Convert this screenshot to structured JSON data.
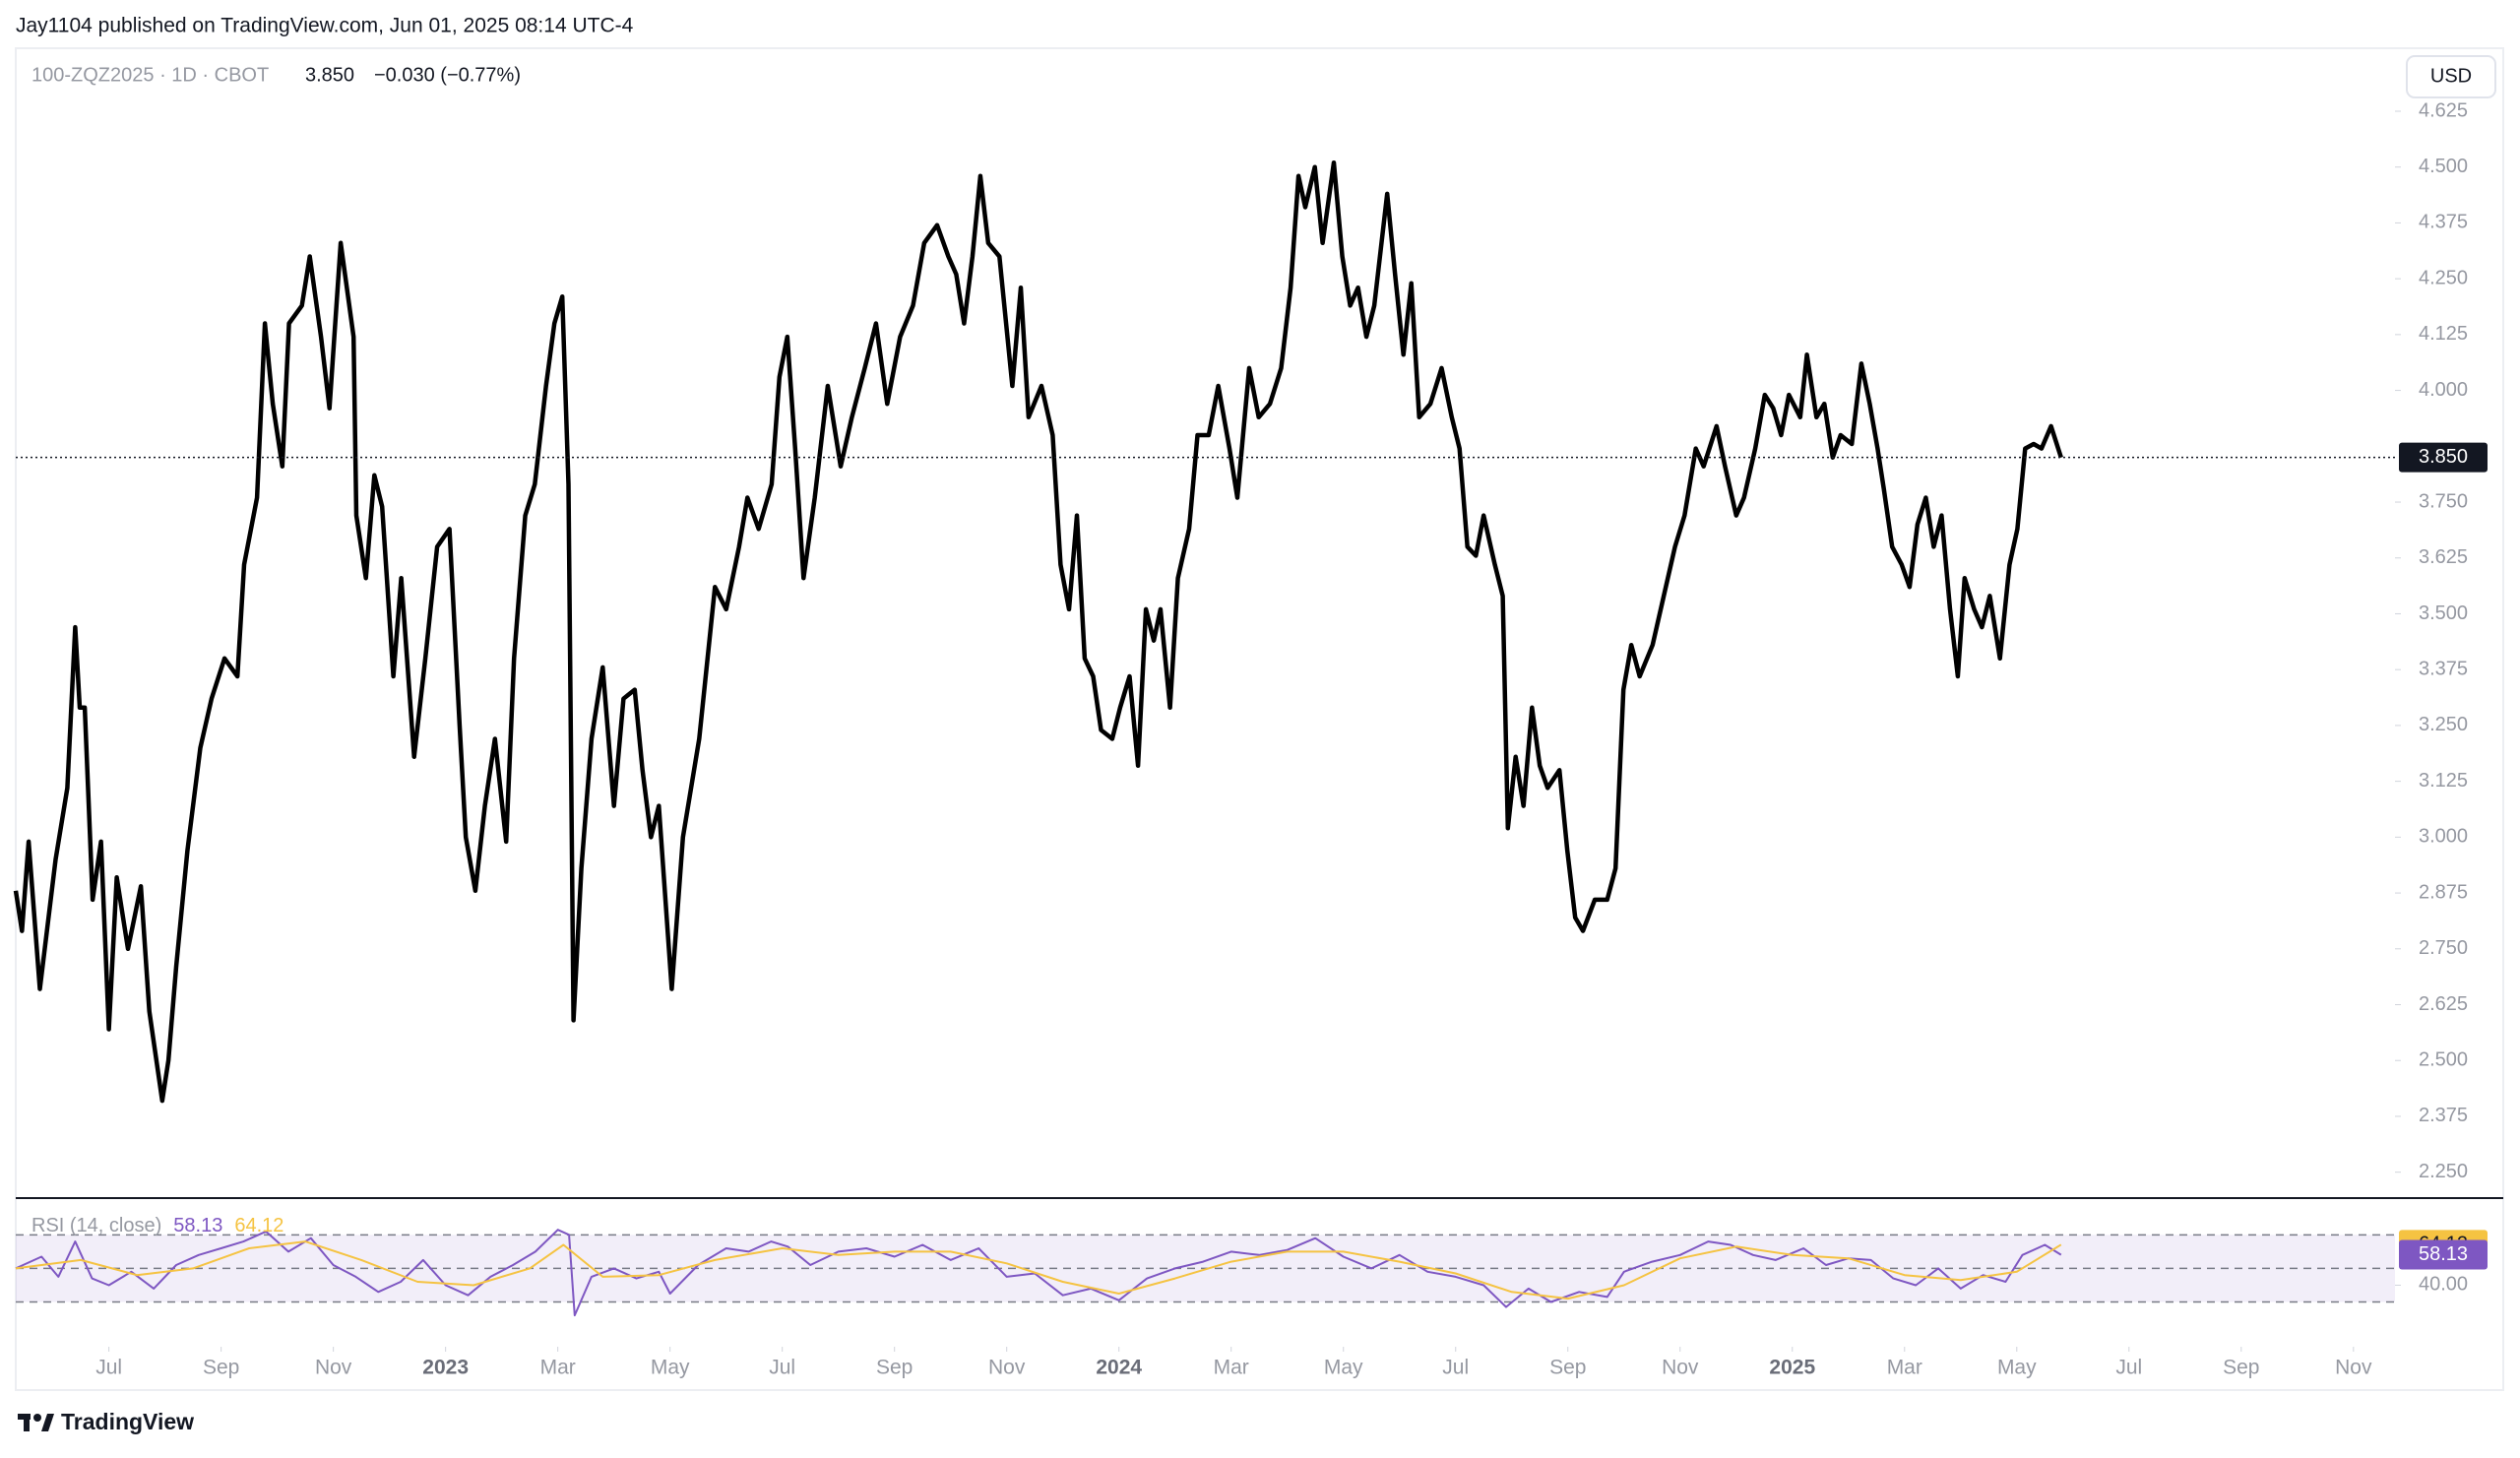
{
  "header": {
    "publisher": "Jay1104 published on TradingView.com, Jun 01, 2025 08:14 UTC-4",
    "symbol": "100-ZQZ2025 · 1D · CBOT",
    "last": "3.850",
    "change": "−0.030 (−0.77%)",
    "currency": "USD"
  },
  "footer": {
    "brand": "TradingView"
  },
  "chart_data": [
    {
      "type": "line",
      "xlim": [
        -1.66,
        40.74
      ],
      "ylim": [
        2.192,
        4.766
      ],
      "xticks": [
        {
          "value": 0,
          "label": "Jul"
        },
        {
          "value": 2,
          "label": "Sep"
        },
        {
          "value": 4,
          "label": "Nov"
        },
        {
          "value": 6,
          "label": "2023"
        },
        {
          "value": 8,
          "label": "Mar"
        },
        {
          "value": 10,
          "label": "May"
        },
        {
          "value": 12,
          "label": "Jul"
        },
        {
          "value": 14,
          "label": "Sep"
        },
        {
          "value": 16,
          "label": "Nov"
        },
        {
          "value": 18,
          "label": "2024"
        },
        {
          "value": 20,
          "label": "Mar"
        },
        {
          "value": 22,
          "label": "May"
        },
        {
          "value": 24,
          "label": "Jul"
        },
        {
          "value": 26,
          "label": "Sep"
        },
        {
          "value": 28,
          "label": "Nov"
        },
        {
          "value": 30,
          "label": "2025"
        },
        {
          "value": 32,
          "label": "Mar"
        },
        {
          "value": 34,
          "label": "May"
        },
        {
          "value": 36,
          "label": "Jul"
        },
        {
          "value": 38,
          "label": "Sep"
        },
        {
          "value": 40,
          "label": "Nov"
        }
      ],
      "yticks": [
        {
          "value": 2.25,
          "label": "2.250"
        },
        {
          "value": 2.375,
          "label": "2.375"
        },
        {
          "value": 2.5,
          "label": "2.500"
        },
        {
          "value": 2.625,
          "label": "2.625"
        },
        {
          "value": 2.75,
          "label": "2.750"
        },
        {
          "value": 2.875,
          "label": "2.875"
        },
        {
          "value": 3,
          "label": "3.000"
        },
        {
          "value": 3.125,
          "label": "3.125"
        },
        {
          "value": 3.25,
          "label": "3.250"
        },
        {
          "value": 3.375,
          "label": "3.375"
        },
        {
          "value": 3.5,
          "label": "3.500"
        },
        {
          "value": 3.625,
          "label": "3.625"
        },
        {
          "value": 3.75,
          "label": "3.750"
        },
        {
          "value": 4,
          "label": "4.000"
        },
        {
          "value": 4.125,
          "label": "4.125"
        },
        {
          "value": 4.25,
          "label": "4.250"
        },
        {
          "value": 4.375,
          "label": "4.375"
        },
        {
          "value": 4.5,
          "label": "4.500"
        },
        {
          "value": 4.625,
          "label": "4.625"
        }
      ],
      "series": [
        {
          "color": "#000000",
          "x": [
            -1.66,
            -1.55,
            -1.43,
            -1.23,
            -0.95,
            -0.74,
            -0.6,
            -0.52,
            -0.43,
            -0.29,
            -0.14,
            0,
            0.14,
            0.34,
            0.57,
            0.72,
            0.95,
            1.06,
            1.2,
            1.4,
            1.63,
            1.83,
            2.06,
            2.29,
            2.41,
            2.64,
            2.78,
            2.92,
            3.09,
            3.21,
            3.44,
            3.58,
            3.78,
            3.93,
            4.13,
            4.36,
            4.41,
            4.58,
            4.73,
            4.87,
            5.07,
            5.21,
            5.44,
            5.64,
            5.85,
            6.07,
            6.25,
            6.36,
            6.53,
            6.7,
            6.88,
            7.08,
            7.22,
            7.42,
            7.59,
            7.79,
            7.94,
            8.08,
            8.19,
            8.28,
            8.42,
            8.6,
            8.8,
            9.0,
            9.17,
            9.37,
            9.51,
            9.66,
            9.8,
            10.03,
            10.23,
            10.52,
            10.8,
            11.0,
            11.23,
            11.38,
            11.58,
            11.81,
            11.95,
            12.09,
            12.23,
            12.38,
            12.58,
            12.81,
            13.04,
            13.24,
            13.47,
            13.67,
            13.87,
            14.1,
            14.33,
            14.53,
            14.76,
            14.96,
            15.1,
            15.24,
            15.39,
            15.53,
            15.67,
            15.87,
            16.1,
            16.25,
            16.39,
            16.62,
            16.82,
            16.96,
            17.11,
            17.25,
            17.39,
            17.54,
            17.68,
            17.88,
            18.02,
            18.19,
            18.34,
            18.48,
            18.62,
            18.74,
            18.91,
            19.05,
            19.25,
            19.4,
            19.6,
            19.77,
            19.97,
            20.11,
            20.32,
            20.49,
            20.69,
            20.89,
            21.06,
            21.2,
            21.32,
            21.49,
            21.63,
            21.83,
            21.98,
            22.12,
            22.26,
            22.41,
            22.55,
            22.78,
            22.92,
            23.07,
            23.21,
            23.35,
            23.55,
            23.75,
            23.93,
            24.07,
            24.21,
            24.36,
            24.5,
            24.7,
            24.84,
            24.93,
            25.07,
            25.21,
            25.36,
            25.5,
            25.64,
            25.85,
            25.99,
            26.13,
            26.27,
            26.48,
            26.7,
            26.85,
            26.99,
            27.13,
            27.28,
            27.51,
            27.71,
            27.91,
            28.08,
            28.28,
            28.42,
            28.65,
            28.8,
            29.0,
            29.14,
            29.34,
            29.51,
            29.66,
            29.8,
            29.94,
            30.14,
            30.26,
            30.43,
            30.57,
            30.72,
            30.86,
            31.06,
            31.23,
            31.38,
            31.52,
            31.63,
            31.78,
            31.95,
            32.09,
            32.23,
            32.38,
            32.52,
            32.66,
            32.81,
            32.95,
            33.07,
            33.24,
            33.38,
            33.52,
            33.7,
            33.87,
            34.01,
            34.15,
            34.3,
            34.44,
            34.61,
            34.79
          ],
          "values": [
            2.88,
            2.79,
            2.99,
            2.66,
            2.95,
            3.11,
            3.47,
            3.29,
            3.29,
            2.86,
            2.99,
            2.57,
            2.91,
            2.75,
            2.89,
            2.61,
            2.41,
            2.5,
            2.71,
            2.97,
            3.2,
            3.31,
            3.4,
            3.36,
            3.61,
            3.76,
            4.15,
            3.97,
            3.83,
            4.15,
            4.19,
            4.3,
            4.12,
            3.96,
            4.33,
            4.12,
            3.72,
            3.58,
            3.81,
            3.74,
            3.36,
            3.58,
            3.18,
            3.4,
            3.65,
            3.69,
            3.25,
            3.0,
            2.88,
            3.07,
            3.22,
            2.99,
            3.4,
            3.72,
            3.79,
            4.01,
            4.15,
            4.21,
            3.79,
            2.59,
            2.93,
            3.22,
            3.38,
            3.07,
            3.31,
            3.33,
            3.15,
            3.0,
            3.07,
            2.66,
            3.0,
            3.22,
            3.56,
            3.51,
            3.65,
            3.76,
            3.69,
            3.79,
            4.03,
            4.12,
            3.87,
            3.58,
            3.76,
            4.01,
            3.83,
            3.94,
            4.05,
            4.15,
            3.97,
            4.12,
            4.19,
            4.33,
            4.37,
            4.3,
            4.26,
            4.15,
            4.3,
            4.48,
            4.33,
            4.3,
            4.01,
            4.23,
            3.94,
            4.01,
            3.9,
            3.61,
            3.51,
            3.72,
            3.4,
            3.36,
            3.24,
            3.22,
            3.29,
            3.36,
            3.16,
            3.51,
            3.44,
            3.51,
            3.29,
            3.58,
            3.69,
            3.9,
            3.9,
            4.01,
            3.87,
            3.76,
            4.05,
            3.94,
            3.97,
            4.05,
            4.23,
            4.48,
            4.41,
            4.5,
            4.33,
            4.51,
            4.3,
            4.19,
            4.23,
            4.12,
            4.19,
            4.44,
            4.26,
            4.08,
            4.24,
            3.94,
            3.97,
            4.05,
            3.94,
            3.87,
            3.65,
            3.63,
            3.72,
            3.61,
            3.54,
            3.02,
            3.18,
            3.07,
            3.29,
            3.16,
            3.11,
            3.15,
            2.97,
            2.82,
            2.79,
            2.86,
            2.86,
            2.93,
            3.33,
            3.43,
            3.36,
            3.43,
            3.54,
            3.65,
            3.72,
            3.87,
            3.83,
            3.92,
            3.83,
            3.72,
            3.76,
            3.87,
            3.99,
            3.96,
            3.9,
            3.99,
            3.94,
            4.08,
            3.94,
            3.97,
            3.85,
            3.9,
            3.88,
            4.06,
            3.97,
            3.87,
            3.78,
            3.65,
            3.61,
            3.56,
            3.7,
            3.76,
            3.65,
            3.72,
            3.51,
            3.36,
            3.58,
            3.51,
            3.47,
            3.54,
            3.4,
            3.61,
            3.69,
            3.87,
            3.88,
            3.87,
            3.92,
            3.85
          ]
        }
      ]
    },
    {
      "type": "line",
      "title": "RSI (14, close)",
      "xlim": [
        -1.66,
        40.74
      ],
      "ylim": [
        3.3,
        91.9
      ],
      "yticks": [
        {
          "value": 40,
          "label": "40.00"
        }
      ],
      "bands": [
        70,
        50,
        30
      ],
      "series": [
        {
          "color": "#7e57c2",
          "last_label": "58.13",
          "x": [
            -1.66,
            -1.2,
            -0.9,
            -0.6,
            -0.3,
            0,
            0.4,
            0.8,
            1.2,
            1.6,
            2.0,
            2.4,
            2.8,
            3.2,
            3.6,
            4.0,
            4.4,
            4.8,
            5.2,
            5.6,
            6.0,
            6.4,
            6.8,
            7.2,
            7.6,
            8.0,
            8.2,
            8.3,
            8.6,
            9.0,
            9.4,
            9.8,
            10.0,
            10.5,
            11.0,
            11.4,
            11.8,
            12.1,
            12.5,
            13.0,
            13.5,
            14.0,
            14.5,
            15.0,
            15.5,
            16.0,
            16.5,
            17.0,
            17.5,
            18.0,
            18.5,
            19.0,
            19.5,
            20.0,
            20.5,
            21.0,
            21.5,
            22.0,
            22.5,
            23.0,
            23.5,
            24.0,
            24.5,
            24.9,
            25.3,
            25.7,
            26.2,
            26.7,
            27.0,
            27.5,
            28.0,
            28.5,
            28.9,
            29.3,
            29.7,
            30.2,
            30.6,
            31.0,
            31.4,
            31.8,
            32.2,
            32.6,
            33.0,
            33.4,
            33.8,
            34.1,
            34.5,
            34.79
          ],
          "values": [
            50,
            57,
            45,
            66,
            44,
            40,
            48,
            38,
            52,
            58,
            62,
            66,
            72,
            60,
            68,
            52,
            45,
            36,
            42,
            55,
            40,
            34,
            45,
            52,
            60,
            73,
            70,
            22,
            45,
            50,
            44,
            48,
            35,
            52,
            62,
            60,
            66,
            63,
            52,
            60,
            62,
            57,
            64,
            55,
            62,
            45,
            47,
            34,
            38,
            31,
            44,
            50,
            54,
            60,
            58,
            61,
            68,
            57,
            50,
            58,
            48,
            45,
            40,
            27,
            38,
            30,
            36,
            33,
            48,
            54,
            58,
            66,
            64,
            58,
            55,
            62,
            52,
            56,
            55,
            44,
            40,
            50,
            38,
            46,
            42,
            58,
            64,
            58.13
          ]
        },
        {
          "color": "#f5c342",
          "last_label": "64.12",
          "x": [
            -1.66,
            -0.5,
            0.5,
            1.5,
            2.5,
            3.5,
            4.5,
            5.5,
            6.5,
            7.5,
            8.1,
            8.8,
            9.8,
            10.8,
            12,
            13,
            14,
            15,
            16,
            17,
            18,
            19,
            20,
            21,
            22,
            23,
            24,
            25,
            26,
            27,
            28,
            29,
            30,
            31,
            32,
            33,
            34,
            34.79
          ],
          "values": [
            50,
            55,
            46,
            50,
            62,
            66,
            55,
            42,
            40,
            50,
            64,
            45,
            46,
            55,
            62,
            58,
            60,
            60,
            53,
            42,
            35,
            44,
            54,
            60,
            60,
            54,
            47,
            36,
            32,
            40,
            56,
            63,
            58,
            56,
            46,
            43,
            48,
            64.12
          ]
        }
      ]
    }
  ]
}
